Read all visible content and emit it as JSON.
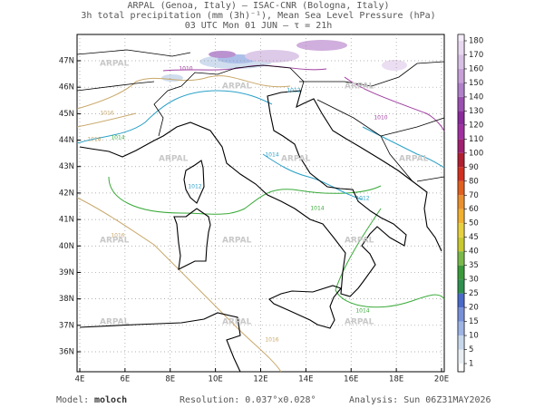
{
  "header": {
    "lines": [
      "ARPAL (Genoa, Italy)  –  ISAC-CNR (Bologna, Italy)",
      "3h total precipitation (mm (3h)⁻¹), Mean Sea Level Pressure (hPa)",
      "03 UTC Mon 01 JUN  –  τ = 21h"
    ]
  },
  "map": {
    "x_ticks": [
      "4E",
      "6E",
      "8E",
      "10E",
      "12E",
      "14E",
      "16E",
      "18E",
      "20E"
    ],
    "y_ticks": [
      "47N",
      "46N",
      "45N",
      "44N",
      "43N",
      "42N",
      "41N",
      "40N",
      "39N",
      "38N",
      "37N",
      "36N"
    ],
    "watermark": "ARPAL",
    "isobar_labels": [
      "1016",
      "1010",
      "1016",
      "1014",
      "1012",
      "1014",
      "1012",
      "1012",
      "1010",
      "1016",
      "1014",
      "1014",
      "1016"
    ]
  },
  "colorbar": {
    "labels": [
      1,
      5,
      10,
      15,
      20,
      25,
      30,
      35,
      40,
      45,
      50,
      60,
      70,
      80,
      90,
      100,
      110,
      120,
      130,
      140,
      150,
      160,
      170,
      180
    ],
    "colors": [
      "#e8eef2",
      "#c8d8ec",
      "#9eb4e4",
      "#7890d8",
      "#4a6ac8",
      "#2f8f4f",
      "#3a9a3a",
      "#7ab84a",
      "#c8c830",
      "#e6d040",
      "#f0b030",
      "#e89030",
      "#e06020",
      "#d03020",
      "#b02030",
      "#a02070",
      "#a030a0",
      "#8a2a9a",
      "#9a50b0",
      "#b080c8",
      "#c8a0d8",
      "#d8c0e4",
      "#e8d8f0",
      "#f4ecf8"
    ]
  },
  "footer": {
    "model_label": "Model:",
    "model": "moloch",
    "resolution": "Resolution: 0.037°x0.028°",
    "analysis": "Analysis: Sun 06Z31MAY2026"
  }
}
